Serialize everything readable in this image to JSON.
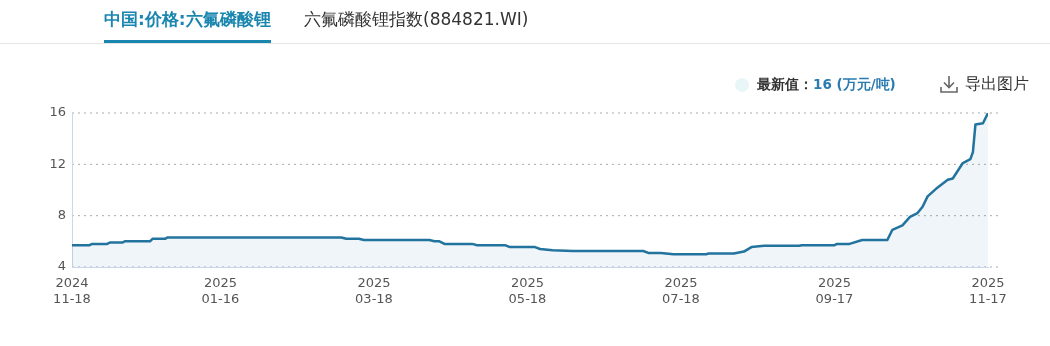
{
  "chart_data": {
    "type": "area",
    "title": "中国:价格:六氟磷酸锂",
    "annotations": [
      "六氟磷酸锂指数(884821.WI)",
      "最新值：16 (万元/吨)",
      "导出图片"
    ],
    "x": [
      "2024-11-18",
      "2024-11-25",
      "2024-11-26",
      "2024-12-02",
      "2024-12-03",
      "2024-12-08",
      "2024-12-09",
      "2024-12-19",
      "2024-12-20",
      "2024-12-25",
      "2024-12-26",
      "2025-03-05",
      "2025-03-07",
      "2025-03-12",
      "2025-03-14",
      "2025-04-09",
      "2025-04-11",
      "2025-04-13",
      "2025-04-15",
      "2025-04-26",
      "2025-04-28",
      "2025-05-09",
      "2025-05-11",
      "2025-05-21",
      "2025-05-23",
      "2025-05-28",
      "2025-06-05",
      "2025-07-03",
      "2025-07-05",
      "2025-07-10",
      "2025-07-15",
      "2025-07-28",
      "2025-07-29",
      "2025-08-08",
      "2025-08-12",
      "2025-08-15",
      "2025-08-20",
      "2025-09-03",
      "2025-09-04",
      "2025-09-17",
      "2025-09-18",
      "2025-09-23",
      "2025-09-28",
      "2025-10-08",
      "2025-10-10",
      "2025-10-14",
      "2025-10-17",
      "2025-10-20",
      "2025-10-22",
      "2025-10-24",
      "2025-10-28",
      "2025-11-01",
      "2025-11-03",
      "2025-11-07",
      "2025-11-10",
      "2025-11-11",
      "2025-11-12",
      "2025-11-15",
      "2025-11-17"
    ],
    "series": [
      {
        "color": "#22739e",
        "values": [
          5.7,
          5.7,
          5.8,
          5.8,
          5.9,
          5.9,
          6.0,
          6.0,
          6.2,
          6.2,
          6.3,
          6.3,
          6.2,
          6.2,
          6.1,
          6.1,
          6.0,
          6.0,
          5.8,
          5.8,
          5.7,
          5.7,
          5.55,
          5.55,
          5.4,
          5.3,
          5.25,
          5.25,
          5.1,
          5.1,
          5.0,
          5.0,
          5.05,
          5.05,
          5.2,
          5.55,
          5.65,
          5.65,
          5.7,
          5.7,
          5.8,
          5.8,
          6.1,
          6.1,
          6.9,
          7.25,
          7.9,
          8.2,
          8.7,
          9.5,
          10.2,
          10.8,
          10.9,
          12.1,
          12.4,
          12.95,
          15.1,
          15.2,
          16
        ]
      }
    ],
    "xlim": [
      "2024-11-18",
      "2025-11-17"
    ],
    "xticks": [
      {
        "value": "2024-11-18",
        "label": "2024\n11-18"
      },
      {
        "value": "2025-01-16",
        "label": "2025\n01-16"
      },
      {
        "value": "2025-03-18",
        "label": "2025\n03-18"
      },
      {
        "value": "2025-05-18",
        "label": "2025\n05-18"
      },
      {
        "value": "2025-07-18",
        "label": "2025\n07-18"
      },
      {
        "value": "2025-09-17",
        "label": "2025\n09-17"
      },
      {
        "value": "2025-11-17",
        "label": "2025\n11-17"
      }
    ],
    "ylim": [
      4,
      16
    ],
    "yticks": [
      4,
      8,
      12,
      16
    ],
    "grid": "y",
    "marker": "none",
    "line_style": "solid"
  }
}
